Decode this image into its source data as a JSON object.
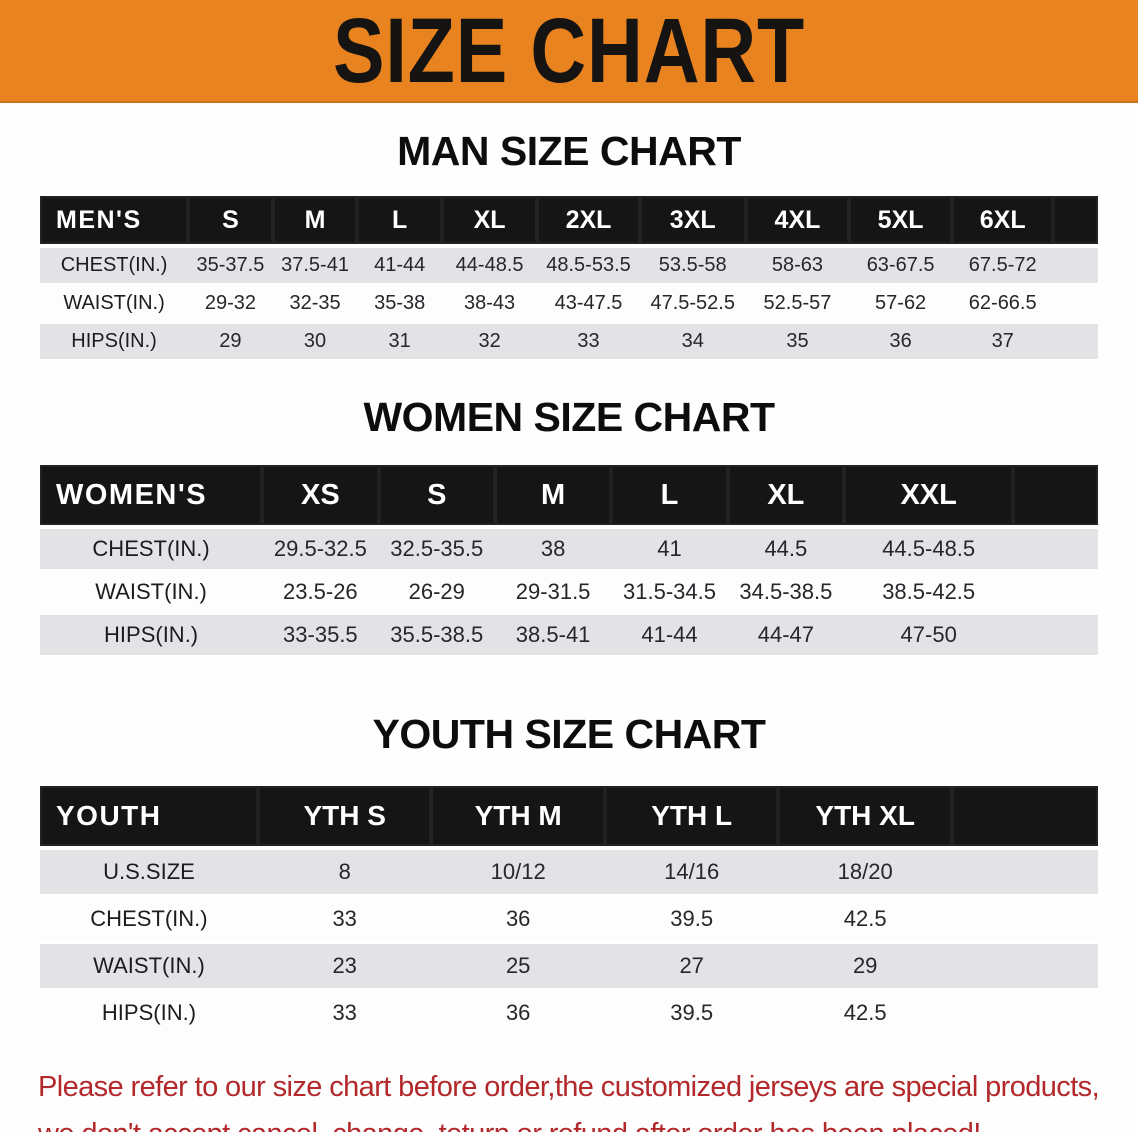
{
  "banner": {
    "title": "SIZE CHART",
    "bg_color": "#E8831F",
    "text_color": "#151413"
  },
  "chart_data": [
    {
      "type": "table",
      "title": "MAN SIZE CHART",
      "corner_label": "MEN'S",
      "size_headers": [
        "S",
        "M",
        "L",
        "XL",
        "2XL",
        "3XL",
        "4XL",
        "5XL",
        "6XL"
      ],
      "rows": [
        {
          "label": "CHEST(IN.)",
          "values": [
            "35-37.5",
            "37.5-41",
            "41-44",
            "44-48.5",
            "48.5-53.5",
            "53.5-58",
            "58-63",
            "63-67.5",
            "67.5-72"
          ]
        },
        {
          "label": "WAIST(IN.)",
          "values": [
            "29-32",
            "32-35",
            "35-38",
            "38-43",
            "43-47.5",
            "47.5-52.5",
            "52.5-57",
            "57-62",
            "62-66.5"
          ]
        },
        {
          "label": "HIPS(IN.)",
          "values": [
            "29",
            "30",
            "31",
            "32",
            "33",
            "34",
            "35",
            "36",
            "37"
          ]
        }
      ]
    },
    {
      "type": "table",
      "title": "WOMEN SIZE CHART",
      "corner_label": "WOMEN'S",
      "size_headers": [
        "XS",
        "S",
        "M",
        "L",
        "XL",
        "XXL"
      ],
      "rows": [
        {
          "label": "CHEST(IN.)",
          "values": [
            "29.5-32.5",
            "32.5-35.5",
            "38",
            "41",
            "44.5",
            "44.5-48.5"
          ]
        },
        {
          "label": "WAIST(IN.)",
          "values": [
            "23.5-26",
            "26-29",
            "29-31.5",
            "31.5-34.5",
            "34.5-38.5",
            "38.5-42.5"
          ]
        },
        {
          "label": "HIPS(IN.)",
          "values": [
            "33-35.5",
            "35.5-38.5",
            "38.5-41",
            "41-44",
            "44-47",
            "47-50"
          ]
        }
      ]
    },
    {
      "type": "table",
      "title": "YOUTH SIZE CHART",
      "corner_label": "YOUTH",
      "size_headers": [
        "YTH S",
        "YTH M",
        "YTH L",
        "YTH XL"
      ],
      "rows": [
        {
          "label": "U.S.SIZE",
          "values": [
            "8",
            "10/12",
            "14/16",
            "18/20"
          ]
        },
        {
          "label": "CHEST(IN.)",
          "values": [
            "33",
            "36",
            "39.5",
            "42.5"
          ]
        },
        {
          "label": "WAIST(IN.)",
          "values": [
            "23",
            "25",
            "27",
            "29"
          ]
        },
        {
          "label": "HIPS(IN.)",
          "values": [
            "33",
            "36",
            "39.5",
            "42.5"
          ]
        }
      ]
    }
  ],
  "footer": {
    "lines": [
      "Please refer to our size chart before order,the customized jerseys are special products,",
      "we don't accept cancel, change, teturn or refund after order has been placed!"
    ],
    "color": "#B3282A"
  },
  "colors": {
    "banner_orange": "#E8831F",
    "header_black": "#151515",
    "row_gray": "#e3e3e6",
    "disclaimer_red": "#B3282A"
  }
}
